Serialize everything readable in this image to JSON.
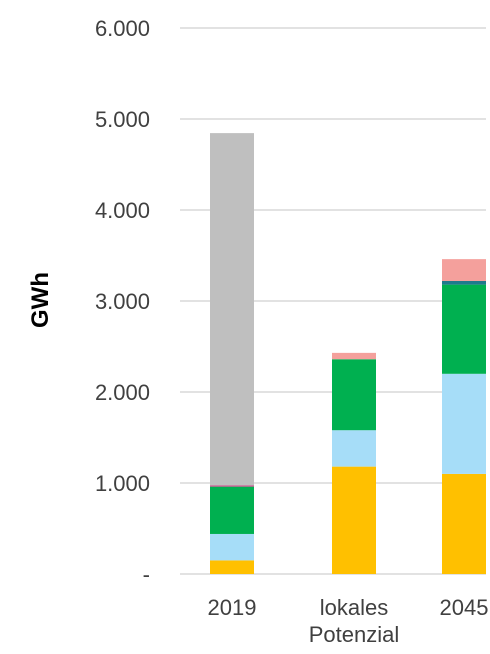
{
  "chart_data": {
    "type": "bar",
    "stacked": true,
    "categories": [
      "2019",
      [
        "lokales",
        "Potenzial"
      ],
      "2045"
    ],
    "ylabel": "GWh",
    "ylim": [
      0,
      6000
    ],
    "yticks": [
      0,
      1000,
      2000,
      3000,
      4000,
      5000,
      6000
    ],
    "ytick_labels": [
      "-",
      "1.000",
      "2.000",
      "3.000",
      "4.000",
      "5.000",
      "6.000"
    ],
    "grid": true,
    "legend": "none",
    "series": [
      {
        "color": "#FFC000",
        "values": [
          150,
          1180,
          1100
        ]
      },
      {
        "color": "#A6DDF8",
        "values": [
          290,
          400,
          1100
        ]
      },
      {
        "color": "#00B050",
        "values": [
          520,
          780,
          980
        ]
      },
      {
        "color": "#1F7A8C",
        "values": [
          0,
          0,
          40
        ]
      },
      {
        "color": "#C84E8A",
        "values": [
          15,
          0,
          0
        ]
      },
      {
        "color": "#F4A09C",
        "values": [
          0,
          70,
          240
        ]
      },
      {
        "color": "#BFBFBF",
        "values": [
          3870,
          0,
          0
        ]
      }
    ]
  }
}
